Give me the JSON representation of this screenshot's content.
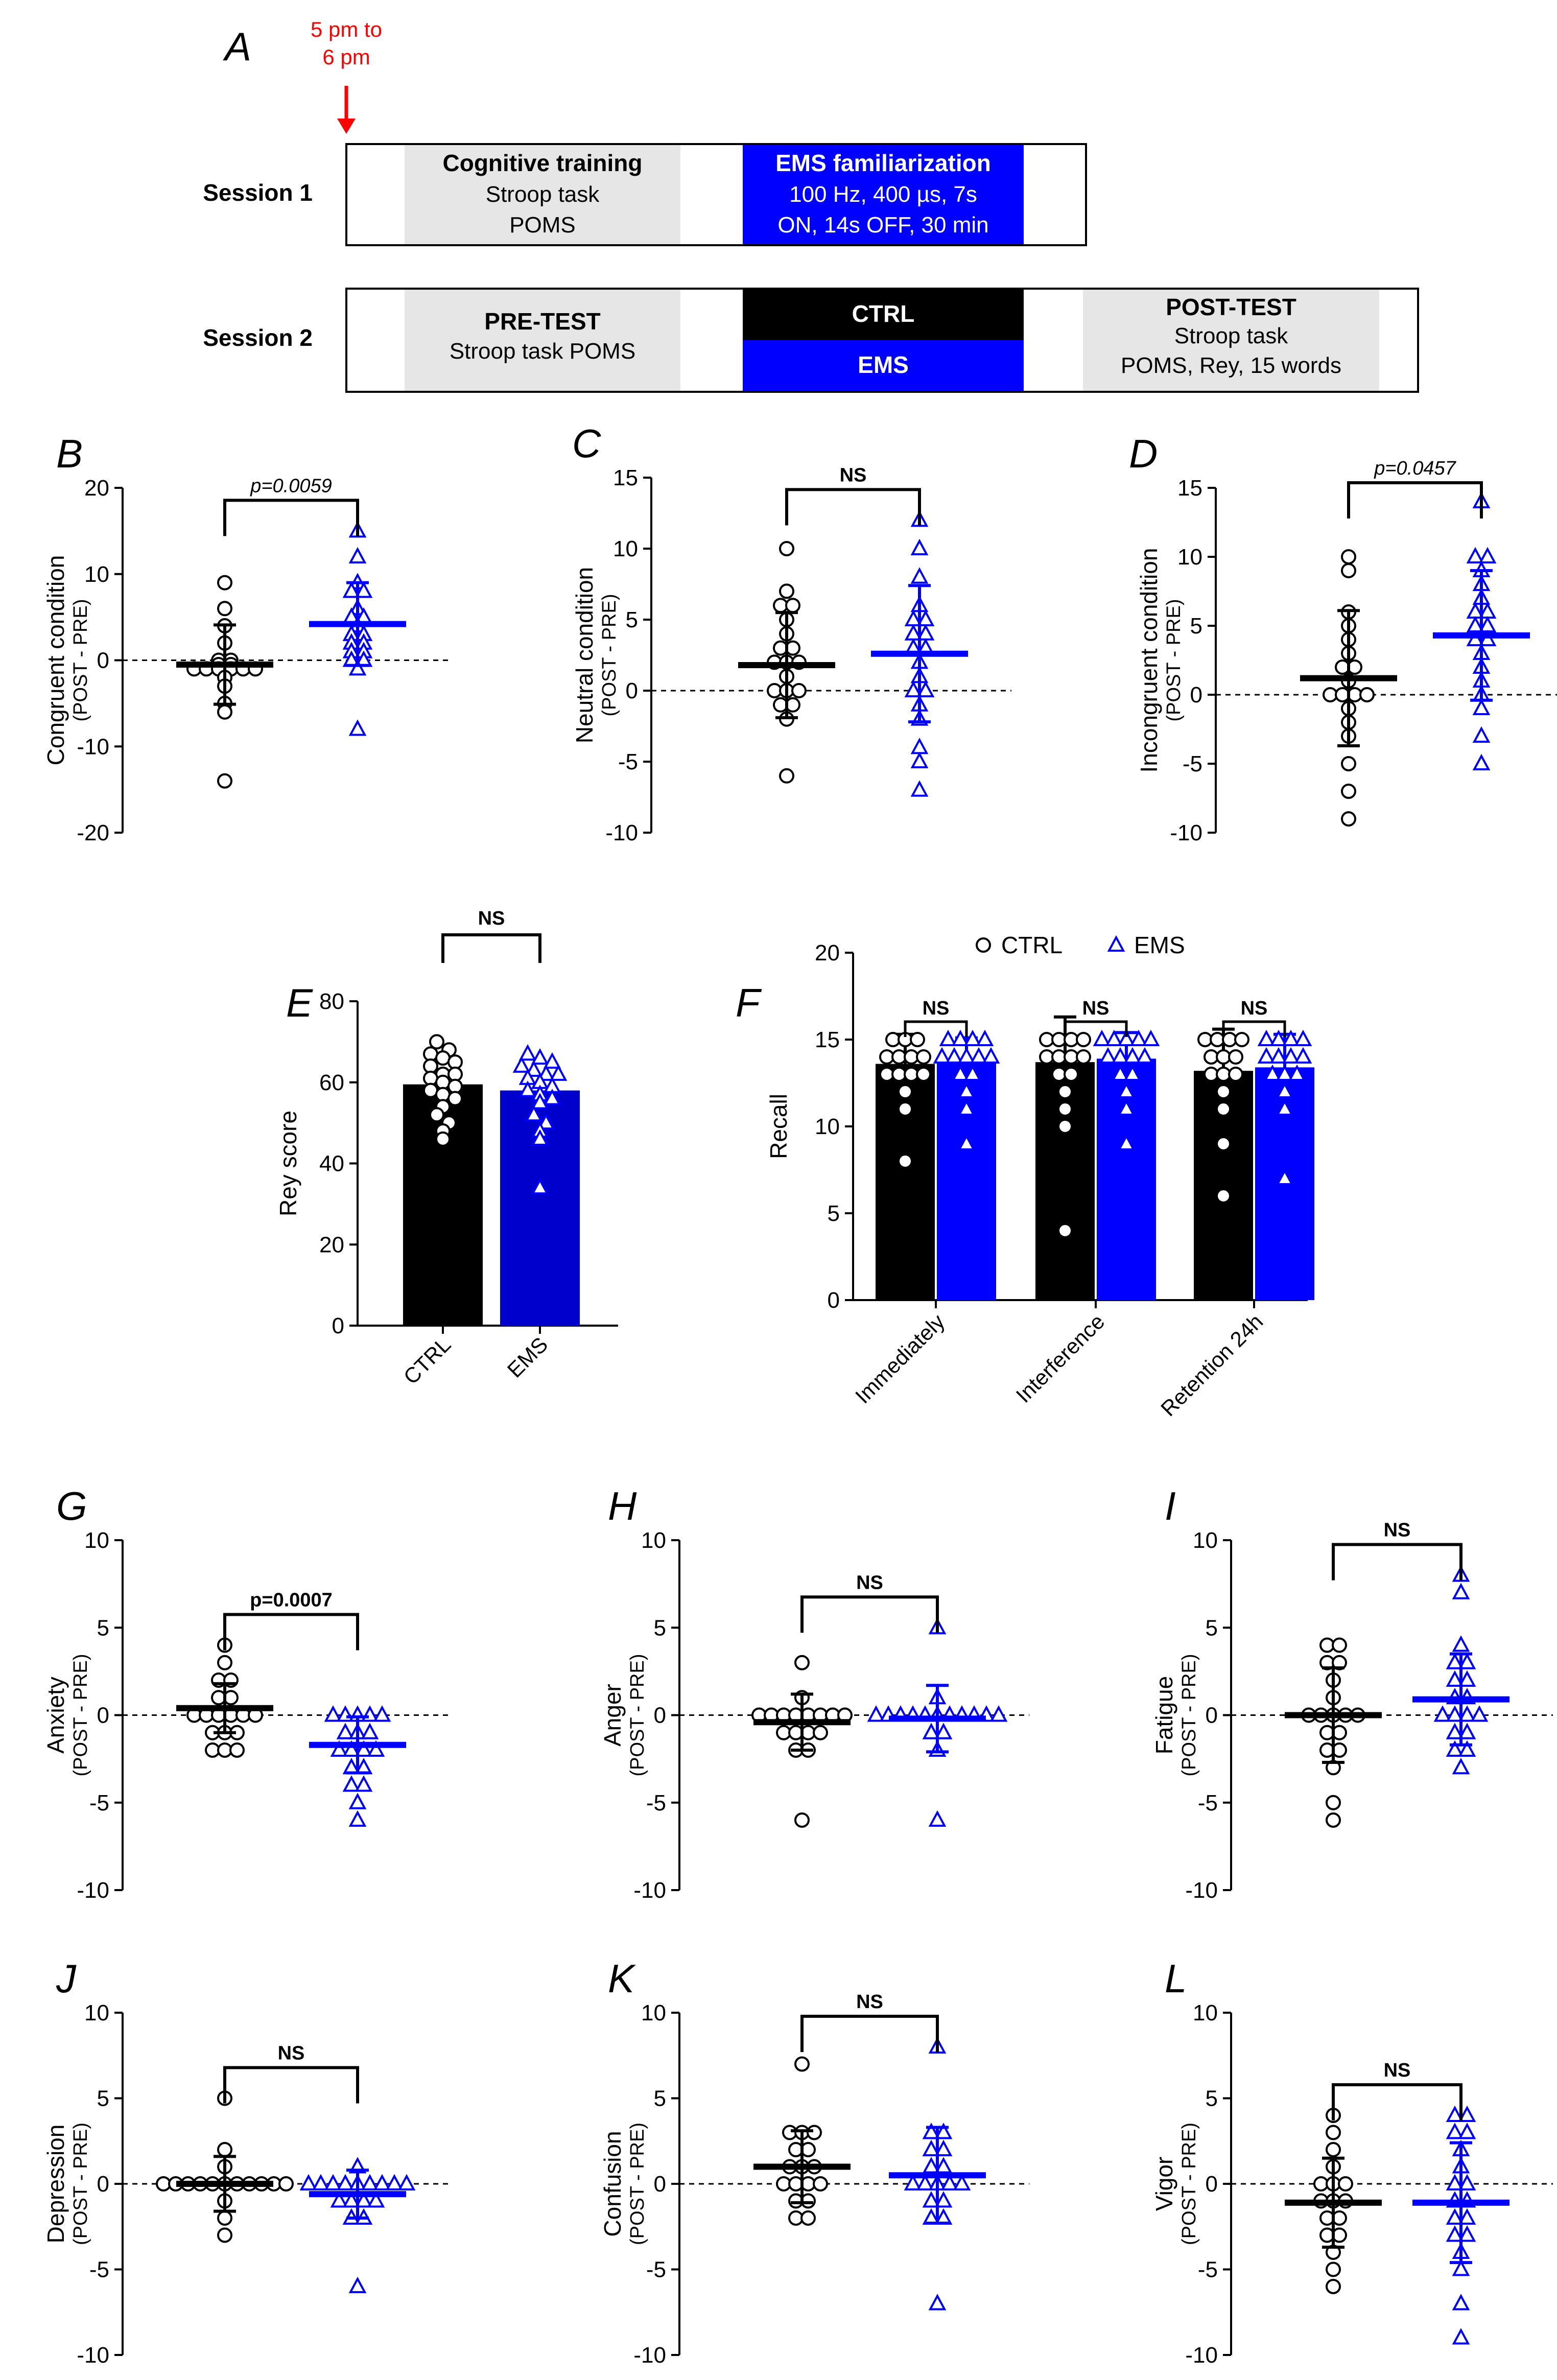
{
  "colors": {
    "ctrl": "#000000",
    "ems": "#0000ff",
    "shade": "#e6e6e6",
    "arrow": "#ff0000"
  },
  "panel_a": {
    "label": "A",
    "arrow_label": [
      "5 pm to",
      "6 pm"
    ],
    "session1": {
      "label": "Session 1",
      "cognitive": {
        "title": "Cognitive training",
        "lines": [
          "Stroop task",
          "POMS"
        ]
      },
      "ems": {
        "title": "EMS familiarization",
        "lines": [
          "100 Hz, 400 µs, 7s",
          "ON, 14s OFF, 30 min"
        ]
      }
    },
    "session2": {
      "label": "Session 2",
      "pretest": {
        "title": "PRE-TEST",
        "lines": [
          "Stroop task POMS"
        ]
      },
      "ctrl": "CTRL",
      "ems": "EMS",
      "posttest": {
        "title": "POST-TEST",
        "lines": [
          "Stroop task",
          "POMS, Rey, 15 words"
        ]
      }
    }
  },
  "chart_data": [
    {
      "id": "B",
      "type": "scatter",
      "ylabel": [
        "Congruent condition",
        "(POST - PRE)"
      ],
      "ylim": [
        -20,
        20
      ],
      "yticks": [
        20,
        10,
        0,
        -10,
        -20
      ],
      "significance": "p=0.0059",
      "sig_italic": true,
      "series": [
        {
          "name": "CTRL",
          "mean": -0.5,
          "sd": 4.6,
          "values": [
            9,
            6,
            4,
            2,
            0,
            0,
            -0.5,
            -0.5,
            -1,
            -1,
            -1,
            -1,
            -1,
            -1,
            -2,
            -3,
            -5,
            -6,
            -14
          ]
        },
        {
          "name": "EMS",
          "mean": 4.2,
          "sd": 4.8,
          "values": [
            15,
            12,
            9,
            8,
            8,
            6,
            5,
            5,
            4,
            3,
            3,
            2,
            2,
            1,
            1,
            0,
            0,
            -1,
            -8
          ]
        }
      ]
    },
    {
      "id": "C",
      "type": "scatter",
      "ylabel": [
        "Neutral condition",
        "(POST - PRE)"
      ],
      "ylim": [
        -10,
        15
      ],
      "yticks": [
        15,
        10,
        5,
        0,
        -5,
        -10
      ],
      "significance": "NS",
      "sig_italic": false,
      "series": [
        {
          "name": "CTRL",
          "mean": 1.8,
          "sd": 3.7,
          "values": [
            10,
            7,
            6,
            6,
            5,
            4,
            3,
            3,
            2,
            2,
            2,
            1,
            0,
            0,
            0,
            -1,
            -1,
            -2,
            -6
          ]
        },
        {
          "name": "EMS",
          "mean": 2.6,
          "sd": 4.8,
          "values": [
            12,
            10,
            8,
            6,
            5,
            5,
            4,
            4,
            3,
            3,
            2,
            1,
            0,
            0,
            -1,
            -2,
            -4,
            -5,
            -7
          ]
        }
      ]
    },
    {
      "id": "D",
      "type": "scatter",
      "ylabel": [
        "Incongruent condition",
        "(POST - PRE)"
      ],
      "ylim": [
        -10,
        15
      ],
      "yticks": [
        15,
        10,
        5,
        0,
        -5,
        -10
      ],
      "significance": "p=0.0457",
      "sig_italic": true,
      "series": [
        {
          "name": "CTRL",
          "mean": 1.2,
          "sd": 4.9,
          "values": [
            10,
            9,
            6,
            5,
            4,
            3,
            2,
            2,
            1,
            0,
            0,
            0,
            0,
            -1,
            -2,
            -3,
            -5,
            -7,
            -9
          ]
        },
        {
          "name": "EMS",
          "mean": 4.3,
          "sd": 4.7,
          "values": [
            14,
            10,
            10,
            9,
            8,
            7,
            6,
            6,
            5,
            5,
            4,
            4,
            3,
            2,
            1,
            0,
            -1,
            -3,
            -5
          ]
        }
      ]
    },
    {
      "id": "E",
      "type": "bar",
      "categories": [
        "CTRL",
        "EMS"
      ],
      "ylabel": [
        "Rey score"
      ],
      "ylim": [
        0,
        80
      ],
      "yticks": [
        80,
        60,
        40,
        20,
        0
      ],
      "significance": "NS",
      "sig_italic": false,
      "values": [
        59.5,
        58
      ],
      "points": [
        [
          70,
          68,
          67,
          66,
          65,
          64,
          62,
          62,
          61,
          60,
          59,
          58,
          57,
          56,
          54,
          52,
          50,
          48,
          46
        ],
        [
          67,
          66,
          65,
          64,
          63,
          62,
          62,
          61,
          60,
          59,
          58,
          57,
          56,
          55,
          52,
          50,
          48,
          46,
          34
        ]
      ]
    },
    {
      "id": "F",
      "type": "bar",
      "ylabel": [
        "Recall"
      ],
      "ylim": [
        0,
        20
      ],
      "yticks": [
        20,
        15,
        10,
        5,
        0
      ],
      "categories": [
        "Immediately",
        "Interference",
        "Retention 24h"
      ],
      "significance": [
        "NS",
        "NS",
        "NS"
      ],
      "series": [
        {
          "name": "CTRL",
          "values": [
            13.6,
            13.7,
            13.2
          ],
          "sd": [
            1.7,
            2.6,
            2.4
          ],
          "points": [
            [
              15,
              15,
              15,
              14,
              14,
              14,
              14,
              13,
              13,
              13,
              13,
              12,
              11,
              8
            ],
            [
              15,
              15,
              15,
              15,
              14,
              14,
              14,
              14,
              13,
              13,
              12,
              11,
              10,
              4
            ],
            [
              15,
              15,
              15,
              15,
              14,
              14,
              14,
              13,
              13,
              13,
              12,
              11,
              9,
              6
            ]
          ]
        },
        {
          "name": "EMS",
          "values": [
            13.8,
            13.9,
            13.4
          ],
          "sd": [
            1.3,
            1.5,
            1.9
          ],
          "points": [
            [
              15,
              15,
              15,
              15,
              14,
              14,
              14,
              14,
              14,
              13,
              13,
              12,
              11,
              9
            ],
            [
              15,
              15,
              15,
              15,
              15,
              14,
              14,
              14,
              14,
              13,
              13,
              12,
              11,
              9
            ],
            [
              15,
              15,
              15,
              15,
              14,
              14,
              14,
              14,
              13,
              13,
              13,
              12,
              11,
              7
            ]
          ]
        }
      ]
    },
    {
      "id": "G",
      "type": "scatter",
      "ylabel": [
        "Anxiety",
        "(POST - PRE)"
      ],
      "ylim": [
        -10,
        10
      ],
      "yticks": [
        10,
        5,
        0,
        -5,
        -10
      ],
      "significance": "p=0.0007",
      "sig_italic": false,
      "series": [
        {
          "name": "CTRL",
          "mean": 0.4,
          "sd": 1.4,
          "values": [
            4,
            3,
            2,
            2,
            1,
            1,
            0,
            0,
            0,
            0,
            0,
            0,
            -1,
            -1,
            -1,
            -2,
            -2,
            -2
          ]
        },
        {
          "name": "EMS",
          "mean": -1.7,
          "sd": 1.6,
          "values": [
            0,
            0,
            0,
            0,
            0,
            -1,
            -1,
            -1,
            -2,
            -2,
            -2,
            -2,
            -3,
            -3,
            -4,
            -4,
            -5,
            -6
          ]
        }
      ]
    },
    {
      "id": "H",
      "type": "scatter",
      "ylabel": [
        "Anger",
        "(POST - PRE)"
      ],
      "ylim": [
        -10,
        10
      ],
      "yticks": [
        10,
        5,
        0,
        -5,
        -10
      ],
      "significance": "NS",
      "sig_italic": false,
      "series": [
        {
          "name": "CTRL",
          "mean": -0.4,
          "sd": 1.6,
          "values": [
            3,
            1,
            0,
            0,
            0,
            0,
            0,
            0,
            0,
            0,
            -1,
            -1,
            -1,
            -1,
            -2,
            -2,
            -6
          ]
        },
        {
          "name": "EMS",
          "mean": -0.2,
          "sd": 1.9,
          "values": [
            5,
            1,
            0,
            0,
            0,
            0,
            0,
            0,
            0,
            0,
            0,
            0,
            0,
            -1,
            -1,
            -2,
            -6
          ]
        }
      ]
    },
    {
      "id": "I",
      "type": "scatter",
      "ylabel": [
        "Fatigue",
        "(POST - PRE)"
      ],
      "ylim": [
        -10,
        10
      ],
      "yticks": [
        10,
        5,
        0,
        -5,
        -10
      ],
      "significance": "NS",
      "sig_italic": false,
      "series": [
        {
          "name": "CTRL",
          "mean": 0.0,
          "sd": 2.7,
          "values": [
            4,
            4,
            3,
            3,
            2,
            1,
            0,
            0,
            0,
            0,
            0,
            -1,
            -1,
            -2,
            -2,
            -3,
            -5,
            -6
          ]
        },
        {
          "name": "EMS",
          "mean": 0.9,
          "sd": 2.6,
          "values": [
            8,
            7,
            4,
            3,
            3,
            2,
            2,
            1,
            1,
            0,
            0,
            0,
            0,
            -1,
            -1,
            -2,
            -2,
            -3
          ]
        }
      ]
    },
    {
      "id": "J",
      "type": "scatter",
      "ylabel": [
        "Depression",
        "(POST - PRE)"
      ],
      "ylim": [
        -10,
        10
      ],
      "yticks": [
        10,
        5,
        0,
        -5,
        -10
      ],
      "significance": "NS",
      "sig_italic": false,
      "series": [
        {
          "name": "CTRL",
          "mean": 0.0,
          "sd": 1.6,
          "values": [
            5,
            2,
            1,
            0,
            0,
            0,
            0,
            0,
            0,
            0,
            0,
            0,
            0,
            0,
            -1,
            -2,
            -3
          ]
        },
        {
          "name": "EMS",
          "mean": -0.6,
          "sd": 1.4,
          "values": [
            1,
            0,
            0,
            0,
            0,
            0,
            0,
            0,
            0,
            0,
            -1,
            -1,
            -1,
            -1,
            -2,
            -2,
            -6
          ]
        }
      ]
    },
    {
      "id": "K",
      "type": "scatter",
      "ylabel": [
        "Confusion",
        "(POST - PRE)"
      ],
      "ylim": [
        -10,
        10
      ],
      "yticks": [
        10,
        5,
        0,
        -5,
        -10
      ],
      "significance": "NS",
      "sig_italic": false,
      "series": [
        {
          "name": "CTRL",
          "mean": 1.0,
          "sd": 2.1,
          "values": [
            7,
            3,
            3,
            3,
            2,
            2,
            1,
            1,
            1,
            0,
            0,
            0,
            0,
            -1,
            -1,
            -2,
            -2
          ]
        },
        {
          "name": "EMS",
          "mean": 0.5,
          "sd": 2.8,
          "values": [
            8,
            3,
            3,
            2,
            2,
            1,
            1,
            0,
            0,
            0,
            0,
            0,
            -1,
            -1,
            -2,
            -2,
            -7
          ]
        }
      ]
    },
    {
      "id": "L",
      "type": "scatter",
      "ylabel": [
        "Vigor",
        "(POST - PRE)"
      ],
      "ylim": [
        -10,
        10
      ],
      "yticks": [
        10,
        5,
        0,
        -5,
        -10
      ],
      "significance": "NS",
      "sig_italic": false,
      "series": [
        {
          "name": "CTRL",
          "mean": -1.1,
          "sd": 2.6,
          "values": [
            4,
            3,
            2,
            1,
            0,
            0,
            0,
            -1,
            -1,
            -1,
            -2,
            -2,
            -3,
            -3,
            -4,
            -5,
            -6
          ]
        },
        {
          "name": "EMS",
          "mean": -1.1,
          "sd": 3.5,
          "values": [
            4,
            4,
            3,
            3,
            2,
            1,
            0,
            0,
            -1,
            -1,
            -2,
            -2,
            -3,
            -3,
            -4,
            -5,
            -7,
            -9
          ]
        }
      ]
    }
  ]
}
